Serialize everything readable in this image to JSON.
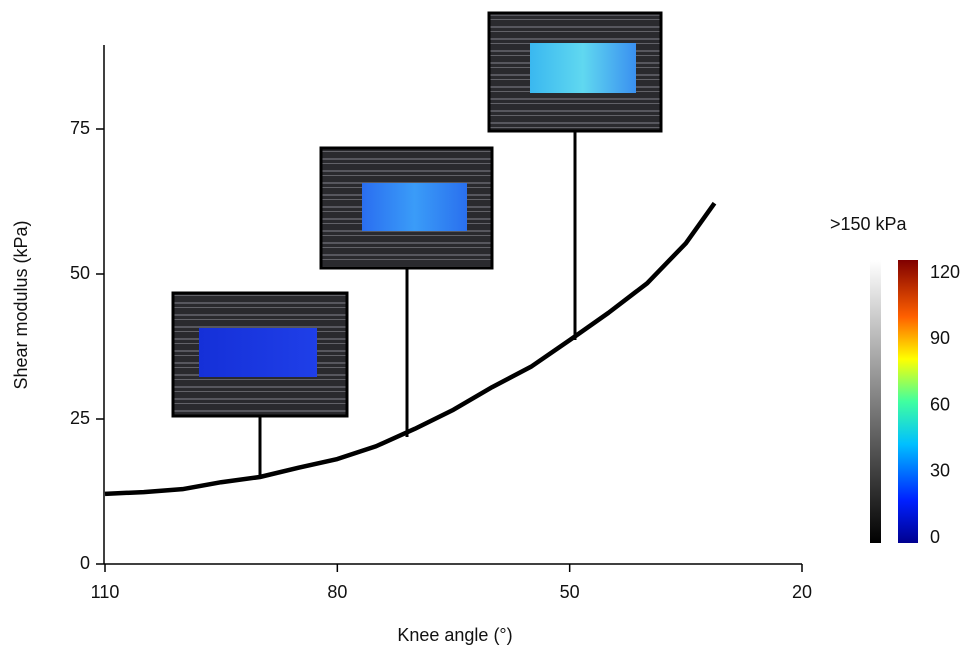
{
  "chart_data": {
    "type": "line",
    "x_label": "Knee angle (°)",
    "y_label": "Shear modulus (kPa)",
    "x": [
      110,
      105,
      100,
      95,
      90,
      85,
      80,
      75,
      70,
      65,
      60,
      55,
      50,
      45,
      40,
      35,
      31.3
    ],
    "values": [
      12.1,
      12.4,
      12.9,
      14.1,
      15,
      16.6,
      18.1,
      20.3,
      23.3,
      26.6,
      30.5,
      34,
      38.6,
      43.3,
      48.4,
      55.3,
      62.2
    ],
    "color": "#000000",
    "xlim": [
      110,
      20
    ],
    "xticks": [
      110,
      80,
      50,
      20
    ],
    "ylim": [
      0,
      90
    ],
    "yticks": [
      0,
      25,
      50,
      75
    ],
    "colorbar": {
      "label": ">150 kPa",
      "lim": [
        0,
        126
      ],
      "ticks": [
        0,
        30,
        60,
        90,
        120
      ]
    }
  }
}
